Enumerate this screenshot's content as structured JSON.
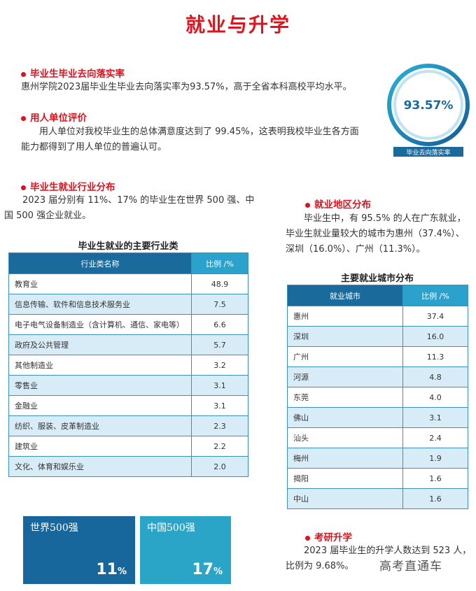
{
  "title": "就业与升学",
  "sections": [
    {
      "heading": "毕业生毕业去向落实率",
      "text": "惠州学院2023届毕业生毕业去向落实率为93.57%，高于全省本科高校平均水平。"
    },
    {
      "heading": "用人单位评价",
      "text": "用人单位对我校毕业生的总体满意度达到了 99.45%，这表明我校毕业生各方面能力都得到了用人单位的普遍认可。"
    },
    {
      "heading": "毕业生就业行业分布",
      "text": "2023 届分别有 11%、17% 的毕业生在世界 500 强、中国 500 强企业就业。"
    },
    {
      "heading": "就业地区分布",
      "text": "毕业生中，有 95.5% 的人在广东就业，毕业生就业量较大的城市为惠州（37.4%）、深圳（16.0%）、广州（11.3%）。"
    },
    {
      "heading": "考研升学",
      "text": "2023 届毕业生的升学人数达到 523 人，比例为 9.68%。"
    }
  ],
  "badge": {
    "value": "93.57%",
    "label": "毕业去向落实率"
  },
  "industry_table": {
    "title": "毕业生就业的主要行业类",
    "header": [
      "行业类名称",
      "比例 /%"
    ],
    "rows": [
      [
        "教育业",
        "48.9"
      ],
      [
        "信息传输、软件和信息技术服务业",
        "7.5"
      ],
      [
        "电子电气设备制造业（含计算机、通信、家电等）",
        "6.6"
      ],
      [
        "政府及公共管理",
        "5.7"
      ],
      [
        "其他制造业",
        "3.2"
      ],
      [
        "零售业",
        "3.1"
      ],
      [
        "金融业",
        "3.1"
      ],
      [
        "纺织、服装、皮革制造业",
        "2.3"
      ],
      [
        "建筑业",
        "2.2"
      ],
      [
        "文化、体育和娱乐业",
        "2.0"
      ]
    ]
  },
  "city_table": {
    "title": "主要就业城市分布",
    "header": [
      "就业城市",
      "比例 /%"
    ],
    "rows": [
      [
        "惠州",
        "37.4"
      ],
      [
        "深圳",
        "16.0"
      ],
      [
        "广州",
        "11.3"
      ],
      [
        "河源",
        "4.8"
      ],
      [
        "东莞",
        "4.0"
      ],
      [
        "佛山",
        "3.1"
      ],
      [
        "汕头",
        "2.4"
      ],
      [
        "梅州",
        "1.9"
      ],
      [
        "揭阳",
        "1.6"
      ],
      [
        "中山",
        "1.6"
      ]
    ]
  },
  "boxes": [
    {
      "label": "世界500强",
      "number": "11",
      "unit": "%"
    },
    {
      "label": "中国500强",
      "number": "17",
      "unit": "%"
    }
  ],
  "watermark": "高考直通车"
}
